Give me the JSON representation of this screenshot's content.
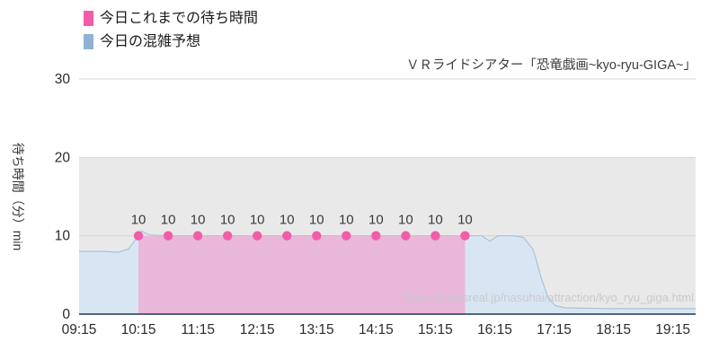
{
  "title": "ＶＲライドシアター「恐竜戯画~kyo-ryu-GIGA~」",
  "legend": {
    "actual": {
      "label": "今日これまでの待ち時間",
      "color": "#f25ca8"
    },
    "forecast": {
      "label": "今日の混雑予想",
      "color": "#8fb3d4"
    }
  },
  "y_axis": {
    "title": "待ち時間（分）min",
    "ticks": [
      0,
      10,
      20,
      30
    ],
    "max": 30
  },
  "x_axis": {
    "ticks": [
      "09:15",
      "10:15",
      "11:15",
      "12:15",
      "13:15",
      "14:15",
      "15:15",
      "16:15",
      "17:15",
      "18:15",
      "19:15"
    ]
  },
  "watermark": "https://parksreal.jp/nasuhai/attraction/kyo_ryu_giga.html",
  "colors": {
    "pink_dot": "#f25ca8",
    "pink_area": "#e8b7d9",
    "blue_area": "#d8e6f3",
    "blue_stroke": "#a5c3dd",
    "band": "#e9e9e9",
    "grid": "#d6d6d6",
    "axis": "#1f3555",
    "tick_text": "#2b2b2b",
    "point_label_text": "#3a3a3a"
  },
  "chart_data": {
    "type": "area",
    "x_start": "09:15",
    "x_end": "19:38",
    "ylim": [
      0,
      30
    ],
    "grid": "horizontal",
    "legend_position": "top-left",
    "band": {
      "from": 0,
      "to": 20
    },
    "series": [
      {
        "name": "今日の混雑予想",
        "type": "area",
        "points": [
          [
            "09:15",
            8
          ],
          [
            "09:40",
            8
          ],
          [
            "09:55",
            7.9
          ],
          [
            "10:05",
            8.3
          ],
          [
            "10:13",
            9.7
          ],
          [
            "10:18",
            10.6
          ],
          [
            "10:26",
            10.1
          ],
          [
            "10:45",
            10
          ],
          [
            "15:45",
            10
          ],
          [
            "16:02",
            10
          ],
          [
            "16:10",
            9.3
          ],
          [
            "16:18",
            10
          ],
          [
            "16:33",
            10
          ],
          [
            "16:44",
            9.8
          ],
          [
            "16:54",
            8.2
          ],
          [
            "17:02",
            4.6
          ],
          [
            "17:09",
            2.1
          ],
          [
            "17:16",
            1.1
          ],
          [
            "17:26",
            0.8
          ],
          [
            "18:10",
            0.7
          ],
          [
            "19:38",
            0.7
          ]
        ]
      },
      {
        "name": "今日これまでの待ち時間",
        "type": "area-with-points",
        "points": [
          [
            "10:15",
            10
          ],
          [
            "10:45",
            10
          ],
          [
            "11:15",
            10
          ],
          [
            "11:45",
            10
          ],
          [
            "12:15",
            10
          ],
          [
            "12:45",
            10
          ],
          [
            "13:15",
            10
          ],
          [
            "13:45",
            10
          ],
          [
            "14:15",
            10
          ],
          [
            "14:45",
            10
          ],
          [
            "15:15",
            10
          ],
          [
            "15:45",
            10
          ]
        ],
        "point_labels": [
          "10",
          "10",
          "10",
          "10",
          "10",
          "10",
          "10",
          "10",
          "10",
          "10",
          "10",
          "10"
        ]
      }
    ]
  }
}
